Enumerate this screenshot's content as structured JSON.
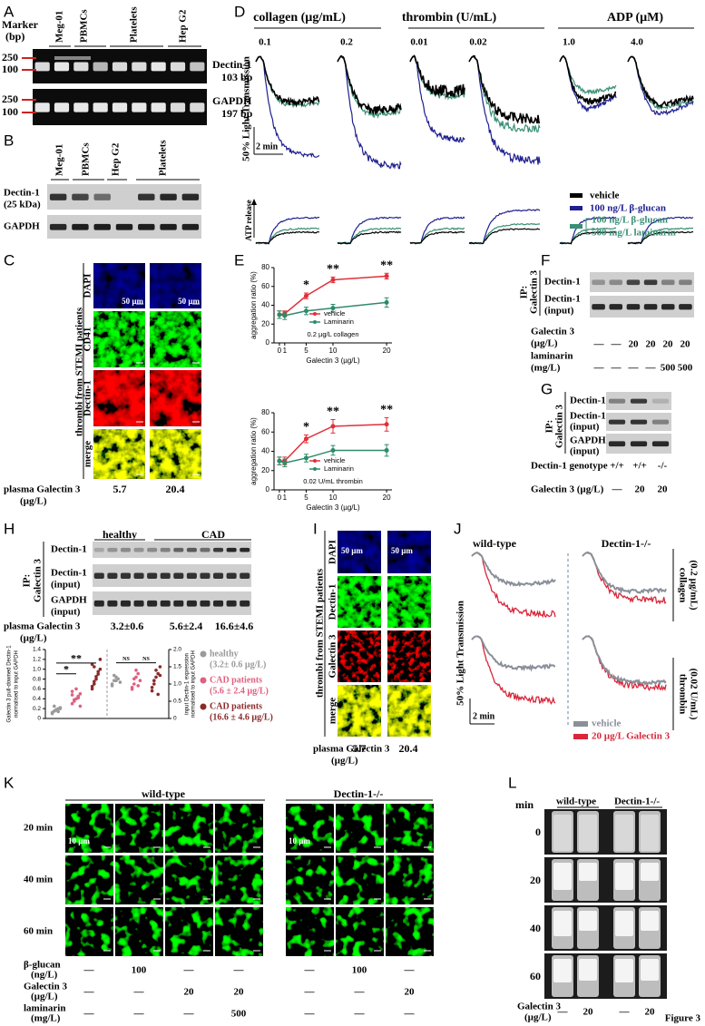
{
  "figure_label": "Figure 3",
  "A": {
    "letter": "A",
    "marker": [
      "Marker",
      "(bp)"
    ],
    "ladder_top": [
      "250",
      "100"
    ],
    "ladder_bottom": [
      "250",
      "100"
    ],
    "lanes": [
      "Meg-01",
      "PBMCs",
      "Platelets",
      "Hep G2"
    ],
    "dectin": [
      "Dectin-1",
      "103 bp"
    ],
    "gapdh": [
      "GAPDH",
      "197 bp"
    ]
  },
  "B": {
    "letter": "B",
    "lanes": [
      "Meg-01",
      "PBMCs",
      "Hep G2",
      "Platelets"
    ],
    "dectin": [
      "Dectin-1",
      "(25 kDa)"
    ],
    "gapdh": "GAPDH"
  },
  "C": {
    "letter": "C",
    "side": "thrombi from STEMI patients",
    "rows": [
      "DAPI",
      "CD41",
      "Dectin-1",
      "merge"
    ],
    "scale": [
      "50 µm",
      "50 µm"
    ],
    "plasma": [
      "plasma Galectin 3",
      "(µg/L)"
    ],
    "levels": [
      "5.7",
      "20.4"
    ]
  },
  "D": {
    "letter": "D",
    "groups": [
      "collagen (µg/mL)",
      "thrombin (U/mL)",
      "ADP (µM)"
    ],
    "doses": [
      "0.1",
      "0.2",
      "0.01",
      "0.02",
      "1.0",
      "4.0"
    ],
    "ylabel": "50% Light Transmission",
    "scale": "2 min",
    "atp": "ATP release",
    "legend": [
      "vehicle",
      "100 ng/L β-glucan",
      "100 ng/L β-glucan",
      "500 mg/L laminarin"
    ]
  },
  "E": {
    "letter": "E"
  },
  "F": {
    "letter": "F",
    "ip": [
      "IP:",
      "Galectin 3"
    ],
    "rows": [
      "Dectin-1",
      "Dectin-1",
      "(input)"
    ],
    "galectin": [
      "Galectin 3",
      "(µg/L)"
    ],
    "galectin_values": [
      "—",
      "—",
      "20",
      "20",
      "20",
      "20"
    ],
    "laminarin": [
      "laminarin",
      "(mg/L)"
    ],
    "laminarin_values": [
      "—",
      "—",
      "—",
      "—",
      "500",
      "500"
    ]
  },
  "G": {
    "letter": "G",
    "ip": [
      "IP:",
      "Galectin 3"
    ],
    "rows": [
      "Dectin-1",
      "Dectin-1",
      "(input)",
      "GAPDH",
      "(input)"
    ],
    "genotype": "Dectin-1 genotype",
    "genotype_values": [
      "+/+",
      "+/+",
      "-/-"
    ],
    "galectin": "Galectin 3 (µg/L)",
    "galectin_values": [
      "—",
      "20",
      "20"
    ]
  },
  "H": {
    "letter": "H",
    "groups": [
      "healthy",
      "CAD"
    ],
    "ip": [
      "IP:",
      "Galectin 3"
    ],
    "rows": [
      "Dectin-1",
      "Dectin-1",
      "(input)",
      "GAPDH",
      "(input)"
    ],
    "plasma": [
      "plasma Galectin 3",
      "(µg/L)"
    ],
    "levels": [
      "3.2±0.6",
      "5.6±2.4",
      "16.6±4.6"
    ]
  },
  "I": {
    "letter": "I",
    "side": "thrombi from STEMI patients",
    "rows": [
      "DAPI",
      "Dectin-1",
      "Galectin 3",
      "merge"
    ],
    "scale": [
      "50 µm",
      "50 µm"
    ],
    "plasma": [
      "plasma Galectin 3",
      "(µg/L)"
    ],
    "levels": [
      "5.7",
      "20.4"
    ]
  },
  "J": {
    "letter": "J",
    "columns": [
      "wild-type",
      "Dectin-1-/-"
    ],
    "rows": [
      [
        "collagen",
        "(0.2 µg/mL)"
      ],
      [
        "thrombin",
        "(0.02 U/mL)"
      ]
    ],
    "ylabel": "50% Light Transmission",
    "scale": "2 min",
    "legend": [
      "vehicle",
      "20 µg/L Galectin 3"
    ]
  },
  "K": {
    "letter": "K",
    "groups": [
      "wild-type",
      "Dectin-1-/-"
    ],
    "times": [
      "20 min",
      "40 min",
      "60 min"
    ],
    "scale": [
      "10 µm",
      "10 µm"
    ],
    "treatments": [
      {
        "label": [
          "β-glucan",
          "(ng/L)"
        ],
        "values": [
          "—",
          "100",
          "—",
          "—",
          "—",
          "100",
          "—"
        ]
      },
      {
        "label": [
          "Galectin 3",
          "(µg/L)"
        ],
        "values": [
          "—",
          "—",
          "20",
          "20",
          "—",
          "—",
          "20"
        ]
      },
      {
        "label": [
          "laminarin",
          "(mg/L)"
        ],
        "values": [
          "—",
          "—",
          "—",
          "500",
          "—",
          "—",
          "—"
        ]
      }
    ]
  },
  "L": {
    "letter": "L",
    "unit": "min",
    "groups": [
      "wild-type",
      "Dectin-1-/-"
    ],
    "times": [
      "0",
      "20",
      "40",
      "60"
    ],
    "galectin": [
      "Galectin 3",
      "(µg/L)"
    ],
    "galectin_values": [
      "—",
      "20",
      "—",
      "20"
    ]
  },
  "chart_data": [
    {
      "type": "line",
      "subtitle": "0.2 µg/L collagen",
      "xlabel": "Galectin 3 (µg/L)",
      "ylabel": "aggregation ratio (%)",
      "x": [
        0,
        1,
        5,
        10,
        20
      ],
      "xlim": [
        -1,
        21
      ],
      "xticks": [
        0,
        1,
        5,
        10,
        20
      ],
      "ylim": [
        0,
        80
      ],
      "yticks": [
        0,
        20,
        40,
        60,
        80
      ],
      "legend": "lower-center",
      "series": [
        {
          "name": "vehicle",
          "color": "#e0303a",
          "values": [
            30,
            31,
            50,
            67,
            71
          ],
          "errors": [
            4,
            3,
            3,
            3,
            3
          ]
        },
        {
          "name": "Laminarin",
          "color": "#2e8b6a",
          "values": [
            30,
            29,
            34,
            37,
            43
          ],
          "errors": [
            4,
            4,
            4,
            4,
            5
          ]
        }
      ],
      "annotations": [
        {
          "text": "*",
          "x": 5
        },
        {
          "text": "**",
          "x": 10
        },
        {
          "text": "**",
          "x": 20
        }
      ]
    },
    {
      "type": "line",
      "subtitle": "0.02 U/mL thrombin",
      "xlabel": "Galectin 3 (µg/L)",
      "ylabel": "aggregation ratio (%)",
      "x": [
        0,
        1,
        5,
        10,
        20
      ],
      "xlim": [
        -1,
        21
      ],
      "xticks": [
        0,
        1,
        5,
        10,
        20
      ],
      "ylim": [
        0,
        80
      ],
      "yticks": [
        0,
        20,
        40,
        60,
        80
      ],
      "legend": "lower-center",
      "series": [
        {
          "name": "vehicle",
          "color": "#e0303a",
          "values": [
            30,
            30,
            53,
            66,
            68
          ],
          "errors": [
            4,
            4,
            4,
            7,
            7
          ]
        },
        {
          "name": "Laminarin",
          "color": "#2e8b6a",
          "values": [
            30,
            28,
            33,
            41,
            41
          ],
          "errors": [
            4,
            4,
            4,
            5,
            6
          ]
        }
      ],
      "annotations": [
        {
          "text": "*",
          "x": 5
        },
        {
          "text": "**",
          "x": 10
        },
        {
          "text": "**",
          "x": 20
        }
      ]
    },
    {
      "type": "strip",
      "ylabel": [
        "Galectin 3 pull-downed Dectin-1",
        "normalised to input GAPDH"
      ],
      "y2label": [
        "input Dectin-1 expression",
        "normalised to input GAPDH"
      ],
      "ylim": [
        0,
        1.4
      ],
      "yticks": [
        0,
        0.2,
        0.4,
        0.6,
        0.8,
        {
          "value": 1,
          "label": "1.0"
        },
        1.2,
        1.4
      ],
      "y2lim": [
        0,
        2
      ],
      "y2ticks": [
        0,
        0.5,
        {
          "value": 1,
          "label": "1.0"
        },
        1.5,
        {
          "value": 2,
          "label": "2.0"
        }
      ],
      "series": [
        {
          "name": "healthy",
          "sublabel": "(3.2± 0.6 µg/L)",
          "color": "#9a9a9a",
          "values": [
            0.12,
            0.15,
            0.18,
            0.2,
            0.22,
            0.1,
            0.25,
            0.17,
            0.14,
            0.2
          ]
        },
        {
          "name": "CAD patients",
          "sublabel": "(5.6 ± 2.4 µg/L)",
          "color": "#e0607e",
          "values": [
            0.3,
            0.35,
            0.4,
            0.45,
            0.5,
            0.55,
            0.38,
            0.6,
            0.42,
            0.25,
            0.48
          ]
        },
        {
          "name": "CAD patients",
          "sublabel": "(16.6 ± 4.6 µg/L)",
          "color": "#8b2a2a",
          "values": [
            0.6,
            0.7,
            0.8,
            0.9,
            1.0,
            1.1,
            0.75,
            0.85,
            0.95,
            1.2,
            0.65,
            1.05
          ]
        },
        {
          "axis": "y2",
          "color": "#9a9a9a",
          "values": [
            1.0,
            1.1,
            1.2,
            1.15,
            1.05,
            0.95,
            1.25,
            1.1
          ]
        },
        {
          "axis": "y2",
          "color": "#e0607e",
          "values": [
            0.9,
            1.0,
            1.2,
            1.3,
            1.1,
            0.85,
            1.15,
            1.4,
            0.95
          ]
        },
        {
          "axis": "y2",
          "color": "#8b2a2a",
          "values": [
            0.8,
            1.0,
            1.2,
            1.3,
            1.5,
            0.9,
            1.1,
            1.4,
            0.7,
            1.25
          ]
        }
      ],
      "annotations": [
        {
          "text": "*"
        },
        {
          "text": "**"
        },
        {
          "text": "NS"
        },
        {
          "text": "NS"
        }
      ]
    }
  ]
}
